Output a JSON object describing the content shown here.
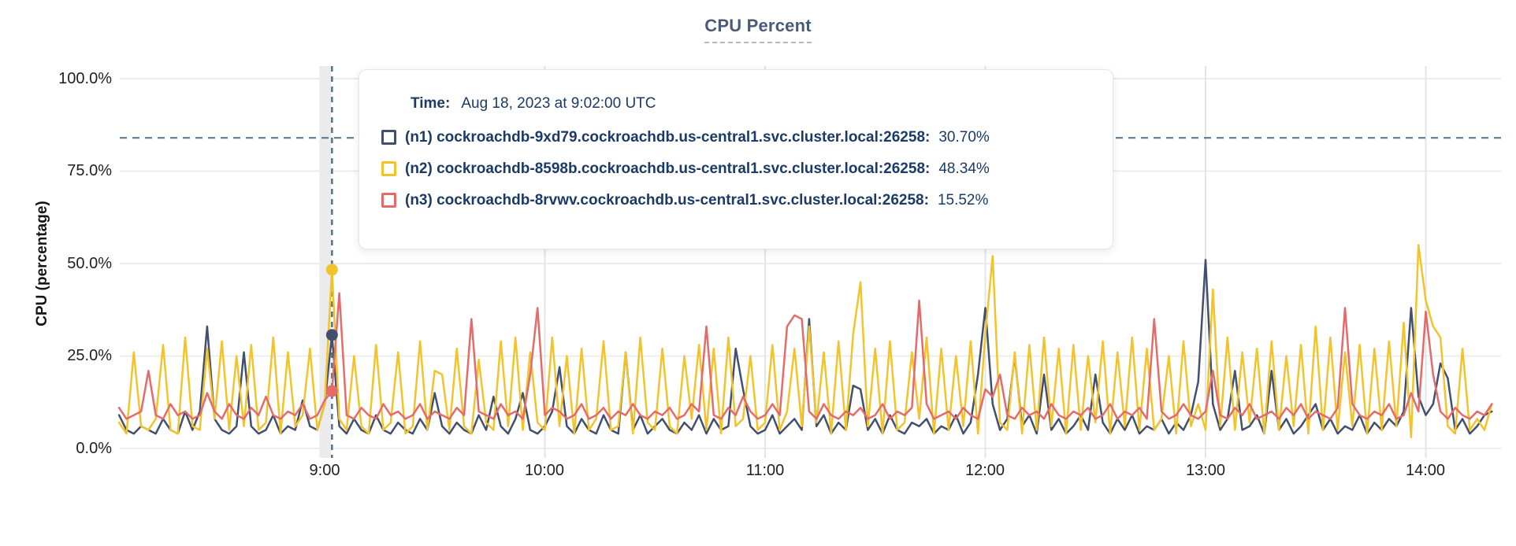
{
  "title": "CPU Percent",
  "tooltip": {
    "time_label": "Time:",
    "time_value": "Aug 18, 2023 at 9:02:00 UTC"
  },
  "axes": {
    "y_title": "CPU (percentage)",
    "y_ticks": [
      "100.0%",
      "75.0%",
      "50.0%",
      "25.0%",
      "0.0%"
    ],
    "x_ticks": [
      "9:00",
      "10:00",
      "11:00",
      "12:00",
      "13:00",
      "14:00"
    ]
  },
  "chart_data": {
    "type": "line",
    "title": "CPU Percent",
    "xlabel": "",
    "ylabel": "CPU (percentage)",
    "ylim": [
      0,
      100
    ],
    "y_tick_pcts": [
      0,
      25,
      50,
      75,
      100
    ],
    "x_start_min": 484,
    "x_step_min": 2,
    "x_tick_minutes": [
      540,
      600,
      660,
      720,
      780,
      840
    ],
    "x_tick_labels": [
      "9:00",
      "10:00",
      "11:00",
      "12:00",
      "13:00",
      "14:00"
    ],
    "grid": true,
    "legend_position": "tooltip-overlay",
    "hover": {
      "time_min": 542,
      "time_text": "Aug 18, 2023 at 9:02:00 UTC",
      "hline_pct": 84,
      "crosshair_color": "#537389"
    },
    "series": [
      {
        "name": "(n1) cockroachdb-9xd79.cockroachdb.us-central1.svc.cluster.local:26258:",
        "hover_value": "30.70%",
        "color": "#42506e",
        "values": [
          9,
          5,
          4,
          6,
          5,
          4,
          8,
          5,
          4,
          10,
          5,
          10,
          33,
          8,
          5,
          4,
          6,
          26,
          6,
          4,
          5,
          9,
          4,
          6,
          5,
          13,
          6,
          5,
          12,
          30.7,
          6,
          4,
          8,
          5,
          4,
          9,
          5,
          4,
          7,
          5,
          4,
          8,
          5,
          15,
          6,
          4,
          7,
          5,
          4,
          9,
          5,
          14,
          6,
          4,
          8,
          15,
          5,
          4,
          6,
          10,
          22,
          6,
          4,
          8,
          5,
          4,
          9,
          5,
          4,
          26,
          5,
          9,
          4,
          6,
          8,
          5,
          4,
          7,
          5,
          9,
          4,
          8,
          5,
          6,
          27,
          16,
          6,
          4,
          5,
          9,
          4,
          6,
          8,
          5,
          35,
          6,
          9,
          4,
          7,
          5,
          17,
          16,
          5,
          8,
          4,
          9,
          5,
          4,
          7,
          6,
          8,
          4,
          6,
          5,
          9,
          4,
          7,
          20,
          38,
          12,
          5,
          8,
          25,
          6,
          9,
          4,
          20,
          5,
          8,
          4,
          6,
          9,
          5,
          20,
          7,
          4,
          8,
          5,
          9,
          4,
          6,
          5,
          8,
          4,
          7,
          5,
          9,
          18,
          51,
          12,
          5,
          8,
          21,
          5,
          6,
          9,
          4,
          21,
          5,
          8,
          4,
          6,
          9,
          12,
          5,
          8,
          4,
          6,
          5,
          9,
          4,
          7,
          5,
          8,
          6,
          10,
          38,
          14,
          9,
          12,
          23,
          19,
          5,
          8,
          4,
          6,
          9,
          10
        ]
      },
      {
        "name": "(n2) cockroachdb-8598b.cockroachdb.us-central1.svc.cluster.local:26258:",
        "hover_value": "48.34%",
        "color": "#f3c32c",
        "values": [
          7,
          4,
          26,
          6,
          5,
          8,
          28,
          5,
          4,
          30,
          6,
          5,
          27,
          8,
          29,
          5,
          25,
          6,
          28,
          5,
          7,
          30,
          4,
          26,
          6,
          9,
          27,
          5,
          12,
          48.34,
          8,
          5,
          25,
          6,
          4,
          28,
          5,
          7,
          26,
          4,
          6,
          29,
          5,
          21,
          20,
          5,
          27,
          6,
          4,
          24,
          7,
          5,
          29,
          6,
          30,
          5,
          26,
          7,
          5,
          30,
          6,
          25,
          4,
          27,
          5,
          8,
          29,
          5,
          6,
          26,
          4,
          30,
          7,
          5,
          27,
          6,
          4,
          25,
          8,
          28,
          5,
          27,
          4,
          30,
          6,
          8,
          25,
          5,
          7,
          28,
          5,
          10,
          27,
          6,
          33,
          7,
          26,
          4,
          29,
          5,
          31,
          45,
          6,
          27,
          4,
          29,
          5,
          7,
          26,
          8,
          30,
          4,
          27,
          5,
          25,
          6,
          29,
          4,
          31,
          52,
          7,
          5,
          26,
          4,
          28,
          5,
          30,
          6,
          27,
          4,
          28,
          5,
          25,
          7,
          29,
          4,
          26,
          6,
          30,
          5,
          27,
          5,
          8,
          25,
          4,
          29,
          6,
          12,
          5,
          43,
          6,
          30,
          5,
          26,
          7,
          27,
          4,
          29,
          5,
          25,
          6,
          28,
          4,
          33,
          5,
          30,
          5,
          26,
          6,
          28,
          4,
          27,
          5,
          29,
          6,
          34,
          3,
          55,
          40,
          33,
          30,
          6,
          4,
          27,
          5,
          8,
          5,
          12
        ]
      },
      {
        "name": "(n3) cockroachdb-8rvwv.cockroachdb.us-central1.svc.cluster.local:26258:",
        "hover_value": "15.52%",
        "color": "#e56a6a",
        "values": [
          11,
          8,
          9,
          10,
          21,
          9,
          8,
          12,
          9,
          10,
          8,
          9,
          15,
          10,
          8,
          12,
          9,
          8,
          11,
          9,
          14,
          9,
          8,
          10,
          9,
          12,
          8,
          9,
          13,
          15.52,
          42,
          9,
          8,
          11,
          9,
          8,
          12,
          9,
          10,
          8,
          9,
          12,
          8,
          10,
          9,
          8,
          11,
          9,
          35,
          10,
          9,
          8,
          12,
          9,
          10,
          8,
          20,
          38,
          9,
          11,
          10,
          8,
          9,
          12,
          8,
          9,
          11,
          8,
          10,
          9,
          12,
          9,
          8,
          10,
          9,
          11,
          8,
          9,
          12,
          10,
          33,
          9,
          8,
          11,
          9,
          14,
          10,
          8,
          9,
          12,
          9,
          33,
          36,
          35,
          10,
          8,
          12,
          9,
          8,
          10,
          9,
          11,
          8,
          9,
          12,
          8,
          10,
          9,
          11,
          40,
          12,
          8,
          9,
          10,
          8,
          11,
          9,
          8,
          16,
          14,
          20,
          9,
          8,
          11,
          9,
          10,
          8,
          12,
          9,
          8,
          10,
          9,
          11,
          8,
          9,
          12,
          8,
          10,
          9,
          11,
          8,
          35,
          10,
          8,
          9,
          12,
          9,
          8,
          10,
          21,
          9,
          8,
          11,
          9,
          12,
          8,
          9,
          10,
          8,
          11,
          9,
          12,
          8,
          10,
          9,
          8,
          11,
          38,
          12,
          9,
          8,
          10,
          9,
          12,
          8,
          9,
          15,
          10,
          37,
          20,
          10,
          8,
          11,
          9,
          8,
          10,
          9,
          12
        ]
      }
    ]
  }
}
